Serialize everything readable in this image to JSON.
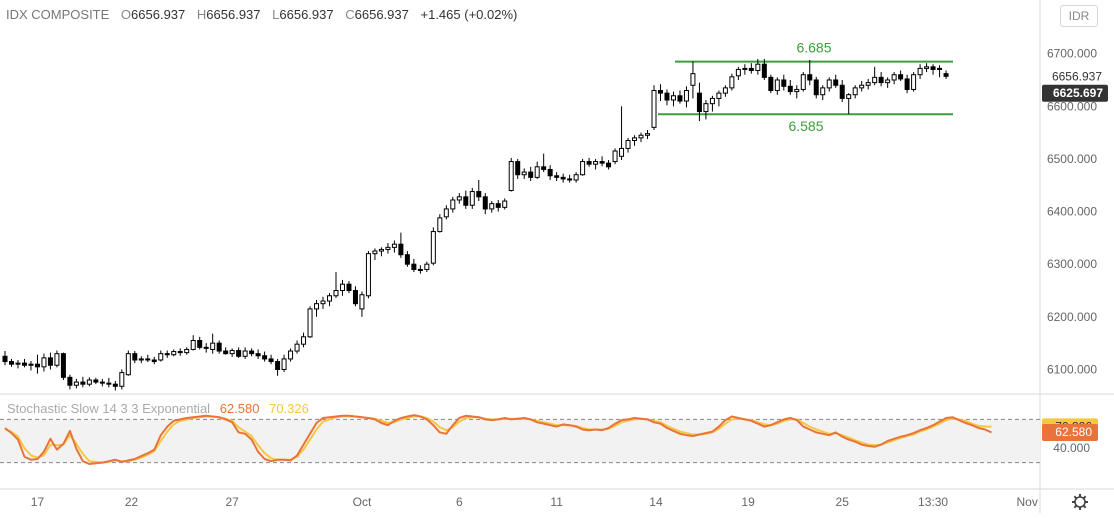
{
  "header": {
    "symbol": "IDX COMPOSITE",
    "open_label": "O",
    "open": "6656.937",
    "high_label": "H",
    "high": "6656.937",
    "low_label": "L",
    "low": "6656.937",
    "close_label": "C",
    "close": "6656.937",
    "change": "+1.465 (+0.02%)"
  },
  "currency_button": "IDR",
  "stochastic": {
    "name": "Stochastic Slow 14 3 3 Exponential",
    "k_value": "62.580",
    "d_value": "70.326",
    "k_color": "#e8743b",
    "d_color": "#f5c842"
  },
  "colors": {
    "candle": "#000000",
    "channel": "#3c9e3c",
    "band": "#f2f2f2"
  },
  "chart_data": [
    {
      "type": "candlestick",
      "title": "IDX COMPOSITE",
      "x_ticks": [
        "17",
        "22",
        "27",
        "Oct",
        "6",
        "11",
        "14",
        "19",
        "25",
        "13:30",
        "Nov"
      ],
      "y_ticks": [
        "6100.000",
        "6200.000",
        "6300.000",
        "6400.000",
        "6500.000",
        "6600.000",
        "6700.000"
      ],
      "ylim": [
        6060,
        6760
      ],
      "price_labels": [
        {
          "value": "6656.937",
          "style": "plain"
        },
        {
          "value": "6625.697",
          "style": "highlight"
        }
      ],
      "channel": {
        "upper": 6685,
        "lower": 6585,
        "upper_label": "6.685",
        "lower_label": "6.585"
      },
      "candles": [
        [
          6125,
          6135,
          6108,
          6115
        ],
        [
          6115,
          6120,
          6105,
          6110
        ],
        [
          6110,
          6118,
          6102,
          6112
        ],
        [
          6112,
          6120,
          6104,
          6108
        ],
        [
          6108,
          6116,
          6098,
          6110
        ],
        [
          6110,
          6128,
          6092,
          6105
        ],
        [
          6105,
          6130,
          6096,
          6122
        ],
        [
          6122,
          6132,
          6100,
          6108
        ],
        [
          6108,
          6136,
          6104,
          6130
        ],
        [
          6130,
          6132,
          6080,
          6085
        ],
        [
          6085,
          6090,
          6062,
          6070
        ],
        [
          6070,
          6082,
          6064,
          6076
        ],
        [
          6076,
          6086,
          6066,
          6072
        ],
        [
          6072,
          6085,
          6068,
          6080
        ],
        [
          6080,
          6084,
          6072,
          6076
        ],
        [
          6076,
          6082,
          6068,
          6074
        ],
        [
          6074,
          6084,
          6066,
          6072
        ],
        [
          6072,
          6078,
          6060,
          6068
        ],
        [
          6068,
          6100,
          6062,
          6094
        ],
        [
          6090,
          6136,
          6088,
          6130
        ],
        [
          6130,
          6135,
          6112,
          6118
        ],
        [
          6118,
          6125,
          6112,
          6120
        ],
        [
          6120,
          6128,
          6114,
          6118
        ],
        [
          6118,
          6124,
          6110,
          6115
        ],
        [
          6118,
          6136,
          6115,
          6130
        ],
        [
          6130,
          6136,
          6122,
          6128
        ],
        [
          6128,
          6138,
          6125,
          6134
        ],
        [
          6134,
          6140,
          6126,
          6132
        ],
        [
          6132,
          6142,
          6128,
          6138
        ],
        [
          6138,
          6165,
          6136,
          6155
        ],
        [
          6155,
          6162,
          6138,
          6142
        ],
        [
          6142,
          6150,
          6132,
          6140
        ],
        [
          6138,
          6168,
          6130,
          6150
        ],
        [
          6150,
          6155,
          6130,
          6135
        ],
        [
          6135,
          6142,
          6128,
          6130
        ],
        [
          6130,
          6140,
          6124,
          6136
        ],
        [
          6136,
          6142,
          6122,
          6125
        ],
        [
          6125,
          6142,
          6120,
          6135
        ],
        [
          6135,
          6140,
          6125,
          6130
        ],
        [
          6130,
          6138,
          6120,
          6126
        ],
        [
          6126,
          6134,
          6115,
          6120
        ],
        [
          6120,
          6128,
          6110,
          6115
        ],
        [
          6115,
          6120,
          6088,
          6100
        ],
        [
          6100,
          6128,
          6095,
          6120
        ],
        [
          6120,
          6140,
          6115,
          6135
        ],
        [
          6135,
          6155,
          6130,
          6148
        ],
        [
          6148,
          6170,
          6142,
          6162
        ],
        [
          6162,
          6220,
          6160,
          6215
        ],
        [
          6215,
          6232,
          6200,
          6225
        ],
        [
          6225,
          6238,
          6215,
          6230
        ],
        [
          6230,
          6245,
          6220,
          6240
        ],
        [
          6240,
          6285,
          6236,
          6250
        ],
        [
          6250,
          6270,
          6240,
          6262
        ],
        [
          6262,
          6268,
          6245,
          6250
        ],
        [
          6250,
          6258,
          6220,
          6225
        ],
        [
          6215,
          6248,
          6200,
          6242
        ],
        [
          6240,
          6325,
          6235,
          6320
        ],
        [
          6320,
          6330,
          6308,
          6325
        ],
        [
          6325,
          6332,
          6315,
          6328
        ],
        [
          6328,
          6340,
          6320,
          6332
        ],
        [
          6332,
          6345,
          6322,
          6338
        ],
        [
          6338,
          6360,
          6312,
          6318
        ],
        [
          6318,
          6325,
          6295,
          6300
        ],
        [
          6300,
          6310,
          6285,
          6290
        ],
        [
          6290,
          6298,
          6282,
          6288
        ],
        [
          6290,
          6305,
          6285,
          6300
        ],
        [
          6302,
          6370,
          6298,
          6362
        ],
        [
          6362,
          6395,
          6360,
          6388
        ],
        [
          6390,
          6412,
          6385,
          6405
        ],
        [
          6405,
          6428,
          6398,
          6422
        ],
        [
          6422,
          6435,
          6415,
          6428
        ],
        [
          6428,
          6440,
          6405,
          6412
        ],
        [
          6412,
          6445,
          6405,
          6438
        ],
        [
          6438,
          6460,
          6420,
          6428
        ],
        [
          6428,
          6435,
          6395,
          6405
        ],
        [
          6405,
          6420,
          6398,
          6415
        ],
        [
          6415,
          6422,
          6400,
          6408
        ],
        [
          6408,
          6425,
          6404,
          6420
        ],
        [
          6440,
          6502,
          6438,
          6495
        ],
        [
          6495,
          6500,
          6462,
          6470
        ],
        [
          6470,
          6482,
          6462,
          6475
        ],
        [
          6475,
          6485,
          6458,
          6465
        ],
        [
          6465,
          6495,
          6462,
          6485
        ],
        [
          6485,
          6510,
          6475,
          6480
        ],
        [
          6480,
          6488,
          6460,
          6468
        ],
        [
          6468,
          6475,
          6458,
          6465
        ],
        [
          6465,
          6472,
          6455,
          6462
        ],
        [
          6462,
          6470,
          6455,
          6460
        ],
        [
          6460,
          6475,
          6455,
          6470
        ],
        [
          6470,
          6500,
          6468,
          6495
        ],
        [
          6495,
          6502,
          6485,
          6490
        ],
        [
          6490,
          6500,
          6480,
          6495
        ],
        [
          6495,
          6505,
          6486,
          6492
        ],
        [
          6492,
          6498,
          6480,
          6485
        ],
        [
          6495,
          6520,
          6490,
          6515
        ],
        [
          6505,
          6600,
          6498,
          6520
        ],
        [
          6520,
          6540,
          6512,
          6535
        ],
        [
          6535,
          6545,
          6525,
          6540
        ],
        [
          6540,
          6550,
          6532,
          6545
        ],
        [
          6545,
          6555,
          6538,
          6548
        ],
        [
          6560,
          6640,
          6555,
          6630
        ],
        [
          6630,
          6642,
          6610,
          6625
        ],
        [
          6625,
          6632,
          6602,
          6612
        ],
        [
          6612,
          6628,
          6600,
          6620
        ],
        [
          6620,
          6630,
          6605,
          6610
        ],
        [
          6610,
          6638,
          6598,
          6630
        ],
        [
          6640,
          6685,
          6615,
          6662
        ],
        [
          6625,
          6645,
          6572,
          6590
        ],
        [
          6590,
          6612,
          6575,
          6605
        ],
        [
          6605,
          6620,
          6590,
          6615
        ],
        [
          6615,
          6630,
          6600,
          6625
        ],
        [
          6625,
          6640,
          6618,
          6635
        ],
        [
          6635,
          6662,
          6630,
          6656
        ],
        [
          6658,
          6675,
          6650,
          6670
        ],
        [
          6670,
          6680,
          6660,
          6672
        ],
        [
          6672,
          6682,
          6662,
          6668
        ],
        [
          6668,
          6690,
          6660,
          6680
        ],
        [
          6680,
          6690,
          6650,
          6655
        ],
        [
          6655,
          6660,
          6625,
          6630
        ],
        [
          6630,
          6655,
          6622,
          6650
        ],
        [
          6650,
          6660,
          6630,
          6638
        ],
        [
          6638,
          6650,
          6622,
          6628
        ],
        [
          6628,
          6640,
          6615,
          6632
        ],
        [
          6632,
          6665,
          6628,
          6660
        ],
        [
          6660,
          6688,
          6640,
          6650
        ],
        [
          6650,
          6656,
          6615,
          6622
        ],
        [
          6622,
          6640,
          6612,
          6635
        ],
        [
          6635,
          6655,
          6628,
          6650
        ],
        [
          6650,
          6660,
          6635,
          6640
        ],
        [
          6640,
          6650,
          6608,
          6615
        ],
        [
          6615,
          6625,
          6585,
          6622
        ],
        [
          6622,
          6640,
          6615,
          6635
        ],
        [
          6635,
          6648,
          6628,
          6640
        ],
        [
          6640,
          6652,
          6632,
          6645
        ],
        [
          6645,
          6675,
          6640,
          6655
        ],
        [
          6655,
          6665,
          6638,
          6645
        ],
        [
          6645,
          6655,
          6635,
          6650
        ],
        [
          6650,
          6665,
          6642,
          6660
        ],
        [
          6660,
          6668,
          6648,
          6652
        ],
        [
          6652,
          6660,
          6625,
          6632
        ],
        [
          6632,
          6665,
          6628,
          6660
        ],
        [
          6660,
          6680,
          6652,
          6672
        ],
        [
          6672,
          6682,
          6665,
          6675
        ],
        [
          6675,
          6680,
          6660,
          6670
        ],
        [
          6670,
          6678,
          6655,
          6672
        ],
        [
          6662,
          6668,
          6652,
          6657
        ]
      ]
    },
    {
      "type": "line",
      "title": "Stochastic Slow 14 3 3 Exponential",
      "ylim": [
        0,
        100
      ],
      "y_ticks": [
        "40.000"
      ],
      "band": [
        20,
        80
      ],
      "series": [
        {
          "name": "%K",
          "color": "#e8743b",
          "values": [
            68,
            61,
            52,
            28,
            24,
            25,
            35,
            53,
            38,
            46,
            64,
            39,
            22,
            18,
            19,
            20,
            22,
            24,
            21,
            23,
            25,
            29,
            33,
            38,
            58,
            70,
            78,
            80,
            82,
            83,
            84,
            85,
            84,
            83,
            80,
            76,
            62,
            60,
            52,
            35,
            25,
            22,
            24,
            24,
            23,
            30,
            45,
            60,
            75,
            82,
            83,
            84,
            85,
            85,
            84,
            83,
            82,
            80,
            75,
            72,
            78,
            82,
            84,
            86,
            84,
            80,
            72,
            62,
            60,
            72,
            82,
            85,
            84,
            83,
            80,
            79,
            80,
            82,
            80,
            81,
            82,
            80,
            76,
            74,
            72,
            70,
            73,
            72,
            70,
            66,
            65,
            66,
            65,
            68,
            74,
            79,
            80,
            82,
            81,
            80,
            76,
            74,
            68,
            64,
            60,
            58,
            57,
            59,
            61,
            63,
            70,
            79,
            84,
            82,
            80,
            78,
            74,
            70,
            72,
            76,
            80,
            82,
            79,
            70,
            66,
            62,
            60,
            58,
            62,
            56,
            52,
            49,
            45,
            43,
            42,
            45,
            50,
            53,
            56,
            58,
            61,
            65,
            68,
            72,
            77,
            82,
            83,
            79,
            75,
            72,
            68,
            66,
            62
          ]
        },
        {
          "name": "%D",
          "color": "#f5c842",
          "values": [
            66,
            63,
            56,
            40,
            30,
            27,
            30,
            45,
            44,
            45,
            58,
            46,
            32,
            22,
            21,
            20,
            21,
            23,
            22,
            22,
            24,
            27,
            31,
            36,
            50,
            63,
            73,
            78,
            80,
            82,
            83,
            84,
            84,
            83,
            81,
            78,
            69,
            63,
            57,
            44,
            33,
            26,
            24,
            24,
            24,
            28,
            38,
            52,
            66,
            77,
            80,
            83,
            84,
            84,
            84,
            83,
            82,
            81,
            78,
            75,
            76,
            80,
            82,
            84,
            84,
            82,
            77,
            69,
            65,
            69,
            77,
            82,
            83,
            83,
            81,
            80,
            80,
            81,
            81,
            81,
            81,
            80,
            78,
            76,
            74,
            72,
            72,
            72,
            71,
            68,
            66,
            66,
            66,
            67,
            71,
            76,
            78,
            80,
            81,
            80,
            78,
            76,
            71,
            67,
            63,
            61,
            59,
            59,
            60,
            62,
            67,
            74,
            80,
            81,
            80,
            79,
            76,
            73,
            72,
            74,
            78,
            80,
            80,
            75,
            70,
            66,
            63,
            60,
            61,
            58,
            55,
            51,
            48,
            45,
            44,
            45,
            48,
            51,
            54,
            57,
            59,
            63,
            66,
            70,
            74,
            79,
            81,
            80,
            78,
            74,
            71,
            70,
            70
          ]
        }
      ]
    }
  ]
}
